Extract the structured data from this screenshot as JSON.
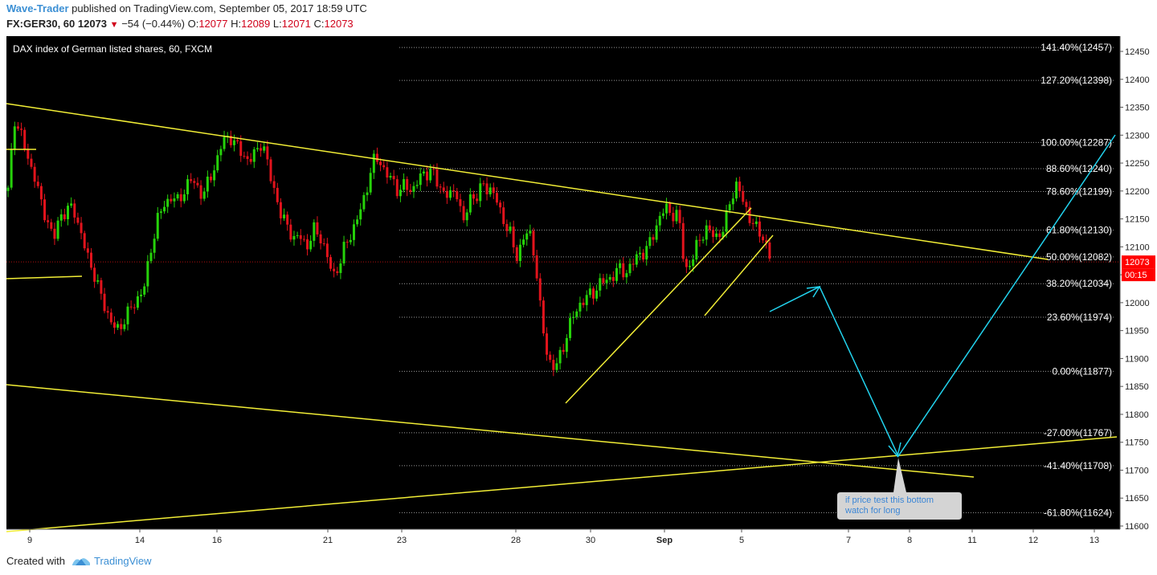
{
  "header": {
    "author": "Wave-Trader",
    "published": " published on TradingView.com, September 05, 2017 18:59 UTC",
    "symbol": "FX:GER30, 60",
    "last": "12073",
    "change": "−54 (−0.44%)",
    "o_label": "O:",
    "o": "12077",
    "h_label": "H:",
    "h": "12089",
    "l_label": "L:",
    "l": "12071",
    "c_label": "C:",
    "c": "12073"
  },
  "footer": {
    "created_with": "Created with",
    "brand": "TradingView"
  },
  "chart_data": {
    "type": "candlestick",
    "title": "DAX index of German listed shares, 60, FXCM",
    "background": "#000000",
    "ylim": [
      11600,
      12470
    ],
    "y_ticks": [
      11600,
      11650,
      11700,
      11750,
      11800,
      11850,
      11900,
      11950,
      12000,
      12050,
      12100,
      12150,
      12200,
      12250,
      12300,
      12350,
      12400,
      12450
    ],
    "x_ticks": [
      "9",
      "14",
      "16",
      "21",
      "23",
      "28",
      "30",
      "Sep",
      "5",
      "7",
      "8",
      "11",
      "12",
      "13"
    ],
    "last_price": {
      "value": 12073,
      "label": "12073",
      "countdown": "00:15",
      "color": "#ff0000"
    },
    "fib_levels": [
      {
        "label": "141.40%(12457)",
        "value": 12457
      },
      {
        "label": "127.20%(12398)",
        "value": 12398
      },
      {
        "label": "100.00%(12287)",
        "value": 12287
      },
      {
        "label": "88.60%(12240)",
        "value": 12240
      },
      {
        "label": "78.60%(12199)",
        "value": 12199
      },
      {
        "label": "61.80%(12130)",
        "value": 12130
      },
      {
        "label": "50.00%(12082)",
        "value": 12082
      },
      {
        "label": "38.20%(12034)",
        "value": 12034
      },
      {
        "label": "23.60%(11974)",
        "value": 11974
      },
      {
        "label": "0.00%(11877)",
        "value": 11877
      },
      {
        "label": "-27.00%(11767)",
        "value": 11767
      },
      {
        "label": "-41.40%(11708)",
        "value": 11708
      },
      {
        "label": "-61.80%(11624)",
        "value": 11624
      }
    ],
    "price_path": [
      12200,
      12330,
      12300,
      12260,
      12230,
      12180,
      12150,
      12110,
      12160,
      12160,
      12175,
      12130,
      12090,
      12060,
      12020,
      11990,
      11960,
      11950,
      11975,
      11990,
      12010,
      12030,
      12100,
      12150,
      12175,
      12190,
      12180,
      12200,
      12220,
      12210,
      12190,
      12225,
      12250,
      12290,
      12300,
      12280,
      12270,
      12250,
      12270,
      12290,
      12240,
      12200,
      12150,
      12140,
      12110,
      12120,
      12100,
      12130,
      12120,
      12080,
      12050,
      12070,
      12110,
      12130,
      12160,
      12200,
      12250,
      12260,
      12230,
      12220,
      12200,
      12210,
      12200,
      12220,
      12230,
      12240,
      12210,
      12200,
      12190,
      12200,
      12140,
      12190,
      12190,
      12210,
      12205,
      12185,
      12150,
      12130,
      12080,
      12110,
      12130,
      12080,
      11960,
      11900,
      11880,
      11910,
      11950,
      11980,
      12000,
      12010,
      12020,
      12035,
      12040,
      12050,
      12060,
      12055,
      12070,
      12090,
      12090,
      12120,
      12150,
      12170,
      12160,
      12155,
      12060,
      12070,
      12110,
      12130,
      12125,
      12120,
      12130,
      12190,
      12210,
      12180,
      12150,
      12130,
      12120,
      12080
    ],
    "annotation": "if price test this bottom watch for long",
    "colors": {
      "up": "#26d20a",
      "down": "#e2131c",
      "trendline": "#f2ee36",
      "projection": "#22d3ee",
      "fib": "#9a9a9a",
      "axis_text": "#222222",
      "label_bg": "#d4d4d4",
      "label_text": "#3b86d6"
    }
  }
}
